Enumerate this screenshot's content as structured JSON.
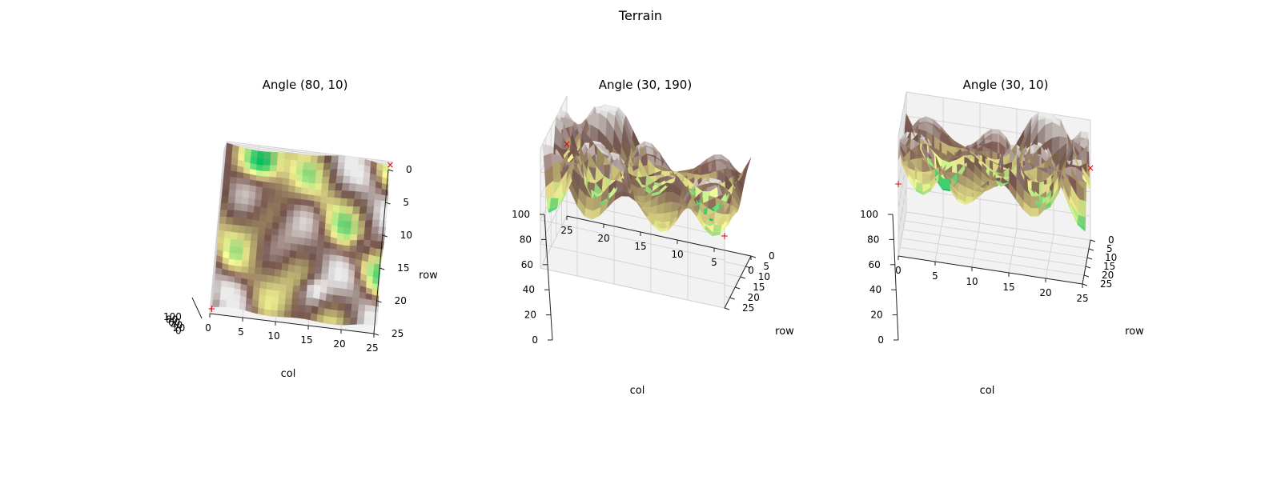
{
  "figure": {
    "title": "Terrain"
  },
  "colors": {
    "pane": "#f2f2f2",
    "grid": "#cfcfcf",
    "axis": "#222222",
    "marker": "#e00000"
  },
  "chart_data": [
    {
      "type": "surface",
      "title": "Angle (80, 10)",
      "view": {
        "elev": 80,
        "azim": 10
      },
      "xlabel": "col",
      "ylabel": "row",
      "zlabel": "",
      "xlim": [
        0,
        25
      ],
      "ylim": [
        0,
        25
      ],
      "zlim": [
        0,
        100
      ],
      "xticks": [
        "0",
        "5",
        "10",
        "15",
        "20",
        "25"
      ],
      "yticks": [
        "0",
        "5",
        "10",
        "15",
        "20",
        "25"
      ],
      "zticks": [
        "100",
        "80",
        "60",
        "40",
        "20",
        "0"
      ],
      "markers": [
        {
          "symbol": "+",
          "col": 0,
          "row": 0,
          "z": 60
        },
        {
          "symbol": "×",
          "col": 25,
          "row": 25,
          "z": 60
        }
      ]
    },
    {
      "type": "surface",
      "title": "Angle (30, 190)",
      "view": {
        "elev": 30,
        "azim": 190
      },
      "xlabel": "col",
      "ylabel": "row",
      "zlabel": "",
      "xlim": [
        0,
        25
      ],
      "ylim": [
        0,
        25
      ],
      "zlim": [
        0,
        100
      ],
      "xticks": [
        "25",
        "20",
        "15",
        "10",
        "5",
        "0"
      ],
      "yticks": [
        "0",
        "5",
        "10",
        "15",
        "20",
        "25"
      ],
      "zticks": [
        "0",
        "20",
        "40",
        "60",
        "80",
        "100"
      ],
      "markers": [
        {
          "symbol": "×",
          "col": 25,
          "row": 25,
          "z": 60
        },
        {
          "symbol": "+",
          "col": 0,
          "row": 0,
          "z": 60
        }
      ]
    },
    {
      "type": "surface",
      "title": "Angle (30, 10)",
      "view": {
        "elev": 30,
        "azim": 10
      },
      "xlabel": "col",
      "ylabel": "row",
      "zlabel": "",
      "xlim": [
        0,
        25
      ],
      "ylim": [
        0,
        25
      ],
      "zlim": [
        0,
        100
      ],
      "xticks": [
        "0",
        "5",
        "10",
        "15",
        "20",
        "25"
      ],
      "yticks": [
        "0",
        "5",
        "10",
        "15",
        "20",
        "25"
      ],
      "zticks": [
        "0",
        "20",
        "40",
        "60",
        "80",
        "100"
      ],
      "markers": [
        {
          "symbol": "+",
          "col": 0,
          "row": 0,
          "z": 60
        },
        {
          "symbol": "×",
          "col": 25,
          "row": 25,
          "z": 60
        }
      ]
    }
  ]
}
